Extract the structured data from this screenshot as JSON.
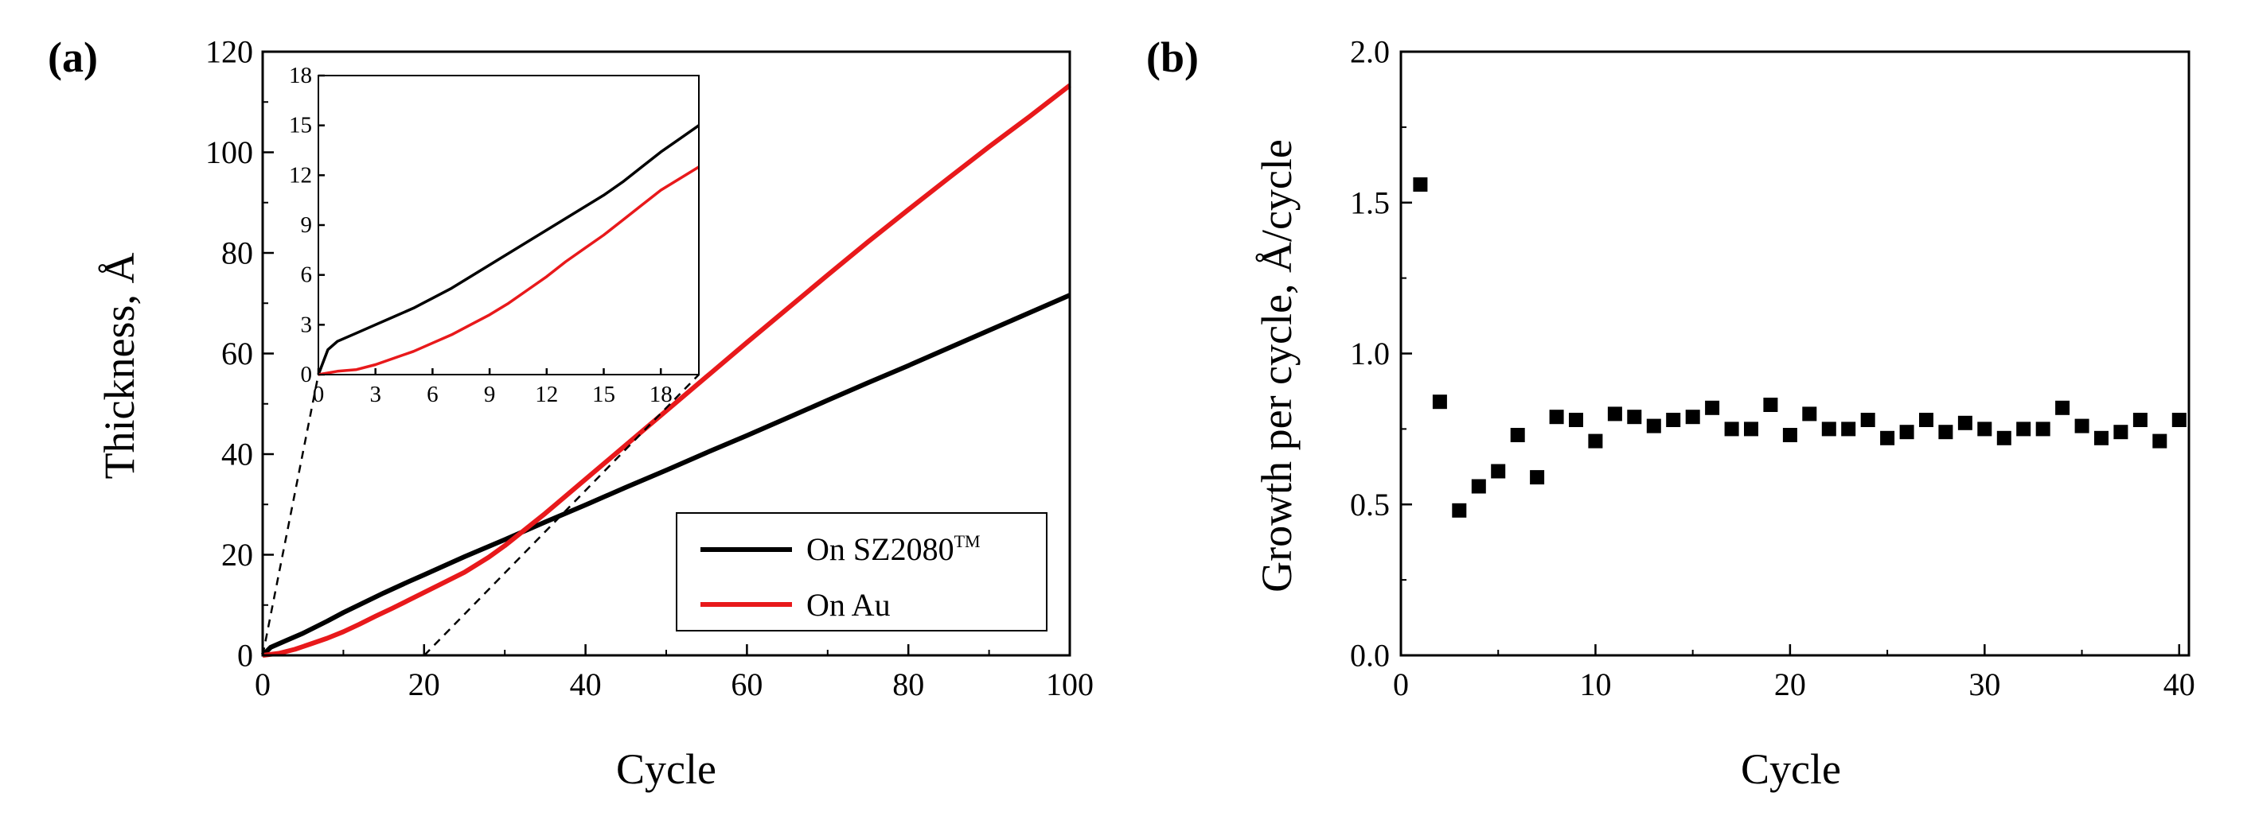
{
  "chart_data": [
    {
      "panel_label": "(a)",
      "type": "line",
      "xlabel": "Cycle",
      "ylabel": "Thickness, Å",
      "xlim": [
        0,
        100
      ],
      "ylim": [
        0,
        120
      ],
      "xticks": [
        "0",
        "20",
        "40",
        "60",
        "80",
        "100"
      ],
      "yticks": [
        "0",
        "20",
        "40",
        "60",
        "80",
        "100",
        "120"
      ],
      "legend": {
        "placement": "bottom-right"
      },
      "series": [
        {
          "name": "On SZ2080",
          "name_superscript": "TM",
          "color": "#000000",
          "points": [
            [
              0,
              0
            ],
            [
              1,
              1.6
            ],
            [
              3,
              3
            ],
            [
              5,
              4.4
            ],
            [
              8,
              6.8
            ],
            [
              10,
              8.5
            ],
            [
              15,
              12.4
            ],
            [
              18,
              14.6
            ],
            [
              20,
              16
            ],
            [
              25,
              19.6
            ],
            [
              30,
              23
            ],
            [
              35,
              26.5
            ],
            [
              40,
              29.9
            ],
            [
              45,
              33.4
            ],
            [
              50,
              36.8
            ],
            [
              55,
              40.3
            ],
            [
              60,
              43.7
            ],
            [
              65,
              47.2
            ],
            [
              70,
              50.7
            ],
            [
              75,
              54.2
            ],
            [
              80,
              57.6
            ],
            [
              85,
              61.1
            ],
            [
              90,
              64.6
            ],
            [
              95,
              68.1
            ],
            [
              100,
              71.6
            ]
          ]
        },
        {
          "name": "On Au",
          "color": "#e8191b",
          "points": [
            [
              0,
              0
            ],
            [
              2,
              0.4
            ],
            [
              4,
              1.2
            ],
            [
              6,
              2.3
            ],
            [
              8,
              3.4
            ],
            [
              10,
              4.7
            ],
            [
              12,
              6.2
            ],
            [
              14,
              7.8
            ],
            [
              16,
              9.3
            ],
            [
              18,
              10.9
            ],
            [
              20,
              12.5
            ],
            [
              22,
              14.1
            ],
            [
              25,
              16.5
            ],
            [
              28,
              19.5
            ],
            [
              30,
              21.8
            ],
            [
              35,
              28.2
            ],
            [
              40,
              35
            ],
            [
              45,
              41.8
            ],
            [
              50,
              48.6
            ],
            [
              55,
              55.4
            ],
            [
              60,
              62.2
            ],
            [
              65,
              68.9
            ],
            [
              70,
              75.6
            ],
            [
              75,
              82.2
            ],
            [
              80,
              88.6
            ],
            [
              85,
              94.9
            ],
            [
              90,
              101.1
            ],
            [
              95,
              107.1
            ],
            [
              100,
              113.3
            ]
          ]
        }
      ],
      "inset": {
        "xlim": [
          0,
          20
        ],
        "ylim": [
          0,
          18
        ],
        "xticks": [
          "0",
          "3",
          "6",
          "9",
          "12",
          "15",
          "18"
        ],
        "yticks": [
          "0",
          "3",
          "6",
          "9",
          "12",
          "15",
          "18"
        ],
        "series": [
          {
            "name": "On SZ2080",
            "color": "#000000",
            "points": [
              [
                0,
                0
              ],
              [
                0.5,
                1.5
              ],
              [
                1,
                2
              ],
              [
                2,
                2.5
              ],
              [
                3,
                3
              ],
              [
                4,
                3.5
              ],
              [
                5,
                4
              ],
              [
                6,
                4.6
              ],
              [
                7,
                5.2
              ],
              [
                8,
                5.9
              ],
              [
                9,
                6.6
              ],
              [
                10,
                7.3
              ],
              [
                11,
                8
              ],
              [
                12,
                8.7
              ],
              [
                13,
                9.4
              ],
              [
                14,
                10.1
              ],
              [
                15,
                10.8
              ],
              [
                16,
                11.6
              ],
              [
                17,
                12.5
              ],
              [
                18,
                13.4
              ],
              [
                19,
                14.2
              ],
              [
                20,
                15
              ]
            ]
          },
          {
            "name": "On Au",
            "color": "#e8191b",
            "points": [
              [
                0,
                0
              ],
              [
                1,
                0.2
              ],
              [
                2,
                0.3
              ],
              [
                3,
                0.6
              ],
              [
                4,
                1
              ],
              [
                5,
                1.4
              ],
              [
                6,
                1.9
              ],
              [
                7,
                2.4
              ],
              [
                8,
                3
              ],
              [
                9,
                3.6
              ],
              [
                10,
                4.3
              ],
              [
                11,
                5.1
              ],
              [
                12,
                5.9
              ],
              [
                13,
                6.8
              ],
              [
                14,
                7.6
              ],
              [
                15,
                8.4
              ],
              [
                16,
                9.3
              ],
              [
                17,
                10.2
              ],
              [
                18,
                11.1
              ],
              [
                19,
                11.8
              ],
              [
                20,
                12.5
              ]
            ]
          }
        ]
      }
    },
    {
      "panel_label": "(b)",
      "type": "scatter",
      "xlabel": "Cycle",
      "ylabel": "Growth per cycle, Å/cycle",
      "xlim": [
        0,
        40.5
      ],
      "ylim": [
        0,
        2.0
      ],
      "xticks": [
        "0",
        "10",
        "20",
        "30",
        "40"
      ],
      "yticks": [
        "0.0",
        "0.5",
        "1.0",
        "1.5",
        "2.0"
      ],
      "series": [
        {
          "name": "Growth per cycle",
          "color": "#000000",
          "x": [
            1,
            2,
            3,
            4,
            5,
            6,
            7,
            8,
            9,
            10,
            11,
            12,
            13,
            14,
            15,
            16,
            17,
            18,
            19,
            20,
            21,
            22,
            23,
            24,
            25,
            26,
            27,
            28,
            29,
            30,
            31,
            32,
            33,
            34,
            35,
            36,
            37,
            38,
            39,
            40
          ],
          "y": [
            1.56,
            0.84,
            0.48,
            0.56,
            0.61,
            0.73,
            0.59,
            0.79,
            0.78,
            0.71,
            0.8,
            0.79,
            0.76,
            0.78,
            0.79,
            0.82,
            0.75,
            0.75,
            0.83,
            0.73,
            0.8,
            0.75,
            0.75,
            0.78,
            0.72,
            0.74,
            0.78,
            0.74,
            0.77,
            0.75,
            0.72,
            0.75,
            0.75,
            0.82,
            0.76,
            0.72,
            0.74,
            0.78,
            0.71,
            0.78
          ]
        }
      ]
    }
  ]
}
